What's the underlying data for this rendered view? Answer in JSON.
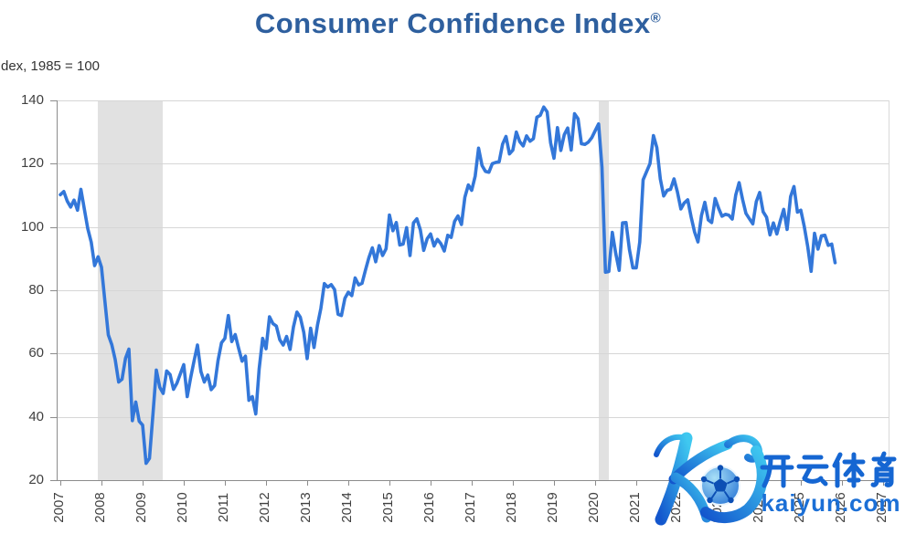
{
  "title": {
    "text": "Consumer Confidence Index",
    "registered": "®"
  },
  "axis_note": "dex, 1985 = 100",
  "watermark": {
    "brand_cn": "开云体育",
    "brand_url": "kaiyun.com",
    "logo": "kaiyun-k-with-soccer-ball"
  },
  "colors": {
    "title_blue": "#2e5f9e",
    "line_blue": "#3377d9",
    "axis_text": "#404040",
    "gridline": "#d6d6d6",
    "axis_line": "#8c8c8c",
    "recession_band": "#e1e1e1",
    "watermark_blue": "#1b6fd6"
  },
  "chart_data": {
    "type": "line",
    "title": "Consumer Confidence Index®",
    "ylabel": "dex, 1985 = 100",
    "ylim": [
      20,
      140
    ],
    "y_ticks": [
      20,
      40,
      60,
      80,
      100,
      120,
      140
    ],
    "x_tick_labels": [
      "2007",
      "2008",
      "2009",
      "2010",
      "2011",
      "2012",
      "2013",
      "2014",
      "2015",
      "2016",
      "2017",
      "2018",
      "2019",
      "2020",
      "2021",
      "2022",
      "2023",
      "2024",
      "2025",
      "2026",
      "2027"
    ],
    "grid": "horizontal-only",
    "legend": "none",
    "shaded_regions": [
      {
        "label": "recession-band-2008-2009",
        "x_start": 2007.92,
        "x_end": 2009.5
      },
      {
        "label": "recession-band-2020",
        "x_start": 2020.08,
        "x_end": 2020.33
      }
    ],
    "series": [
      {
        "name": "Consumer Confidence Index",
        "color": "#3377d9",
        "frequency": "monthly",
        "start": "2007-01",
        "end": "2025-11",
        "values": [
          110.2,
          111.2,
          108.2,
          106.3,
          108.5,
          105.3,
          111.9,
          105.6,
          99.5,
          95.2,
          87.8,
          90.6,
          87.3,
          76.4,
          65.9,
          62.8,
          58.1,
          51.0,
          51.9,
          58.5,
          61.4,
          38.8,
          44.7,
          38.6,
          37.4,
          25.3,
          26.9,
          40.8,
          54.8,
          49.3,
          47.4,
          54.5,
          53.4,
          48.7,
          50.6,
          53.6,
          56.5,
          46.4,
          52.3,
          57.7,
          62.7,
          54.3,
          51.0,
          53.2,
          48.6,
          49.9,
          57.8,
          63.4,
          64.8,
          72.0,
          63.8,
          66.0,
          61.7,
          57.6,
          59.2,
          45.2,
          46.4,
          40.9,
          55.2,
          64.8,
          61.5,
          71.6,
          69.5,
          68.7,
          64.4,
          62.7,
          65.4,
          61.3,
          68.4,
          73.1,
          71.5,
          66.7,
          58.4,
          68.0,
          61.9,
          69.0,
          74.3,
          82.1,
          81.0,
          81.8,
          80.2,
          72.4,
          72.0,
          77.5,
          79.4,
          78.3,
          83.9,
          81.7,
          82.2,
          86.4,
          90.3,
          93.4,
          89.0,
          94.1,
          91.0,
          93.1,
          103.8,
          98.8,
          101.4,
          94.3,
          94.6,
          99.8,
          91.0,
          101.3,
          102.6,
          99.1,
          92.6,
          96.3,
          97.8,
          94.0,
          96.1,
          94.7,
          92.4,
          97.4,
          96.7,
          101.8,
          103.5,
          100.8,
          109.4,
          113.3,
          111.6,
          116.1,
          124.9,
          119.4,
          117.6,
          117.3,
          120.0,
          120.4,
          120.6,
          126.2,
          128.6,
          123.1,
          124.3,
          130.0,
          127.0,
          125.6,
          128.8,
          127.1,
          127.9,
          134.7,
          135.3,
          137.9,
          136.4,
          126.6,
          121.7,
          131.4,
          124.2,
          129.2,
          131.3,
          124.3,
          135.8,
          134.2,
          126.3,
          126.1,
          126.8,
          128.2,
          130.4,
          132.6,
          118.8,
          85.7,
          85.9,
          98.3,
          91.7,
          86.3,
          101.3,
          101.4,
          92.9,
          87.1,
          87.1,
          95.2,
          114.9,
          117.5,
          120.0,
          128.9,
          125.1,
          115.2,
          109.8,
          111.6,
          111.9,
          115.2,
          111.1,
          105.7,
          107.6,
          108.6,
          103.2,
          98.4,
          95.3,
          103.6,
          107.8,
          102.2,
          101.4,
          109.0,
          106.0,
          103.4,
          104.0,
          103.7,
          102.5,
          110.1,
          114.0,
          108.7,
          104.3,
          102.6,
          101.0,
          108.0,
          110.9,
          104.8,
          103.1,
          97.5,
          101.3,
          97.8,
          101.9,
          105.6,
          99.2,
          109.6,
          112.8,
          104.7,
          105.3,
          100.1,
          93.9,
          86.0,
          98.0,
          93.0,
          97.2,
          97.4,
          94.2,
          94.6,
          88.7
        ]
      }
    ]
  }
}
